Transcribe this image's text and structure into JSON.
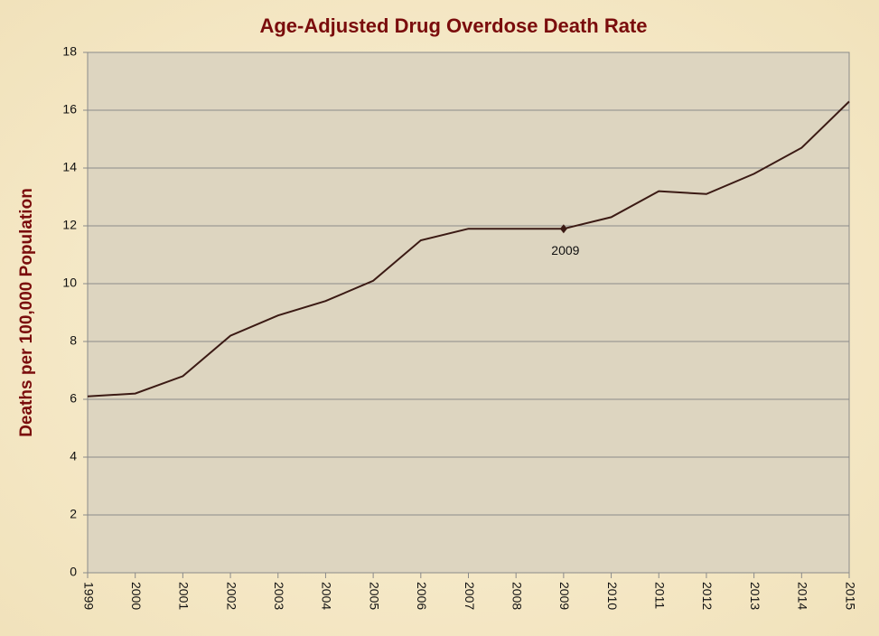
{
  "chart_data": {
    "type": "line",
    "title": "Age-Adjusted Drug Overdose Death Rate",
    "y_label": "Deaths per 100,000 Population",
    "x": [
      1999,
      2000,
      2001,
      2002,
      2003,
      2004,
      2005,
      2006,
      2007,
      2008,
      2009,
      2010,
      2011,
      2012,
      2013,
      2014,
      2015
    ],
    "series": [
      {
        "name": "Death rate",
        "color": "#3b1a14",
        "values": [
          6.1,
          6.2,
          6.8,
          8.2,
          8.9,
          9.4,
          10.1,
          11.5,
          11.9,
          11.9,
          11.9,
          12.3,
          13.2,
          13.1,
          13.8,
          14.7,
          16.3
        ]
      }
    ],
    "xlim": [
      1999,
      2015
    ],
    "xticks": [
      1999,
      2000,
      2001,
      2002,
      2003,
      2004,
      2005,
      2006,
      2007,
      2008,
      2009,
      2010,
      2011,
      2012,
      2013,
      2014,
      2015
    ],
    "ylim": [
      0,
      18
    ],
    "yticks": [
      0,
      2,
      4,
      6,
      8,
      10,
      12,
      14,
      16,
      18
    ],
    "grid": true,
    "annotations": [
      {
        "text": "2009",
        "x": 2009,
        "y": 11.9
      }
    ]
  }
}
